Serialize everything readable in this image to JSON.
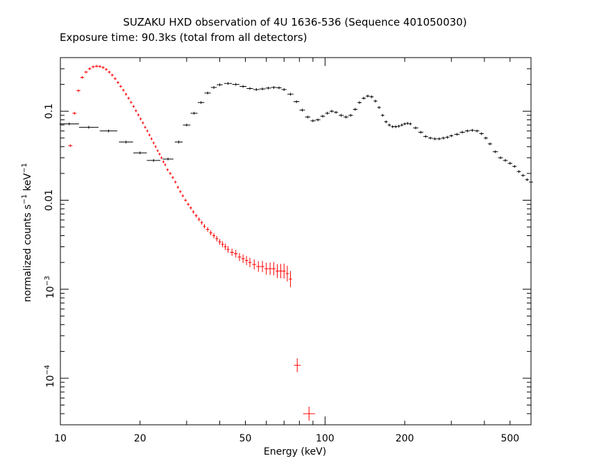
{
  "chart_data": {
    "type": "scatter",
    "title": "SUZAKU HXD observation of 4U 1636-536 (Sequence 401050030)",
    "subtitle": "Exposure time: 90.3ks (total from all detectors)",
    "xlabel": "Energy (keV)",
    "ylabel": {
      "base": "normalized counts s",
      "exp1": "−1",
      "mid": " keV",
      "exp2": "−1"
    },
    "xscale": "log",
    "yscale": "log",
    "xlim": [
      10,
      600
    ],
    "ylim": [
      3e-05,
      0.4
    ],
    "grid": false,
    "x_ticks": [
      {
        "value": 10,
        "label": "10"
      },
      {
        "value": 20,
        "label": "20"
      },
      {
        "value": 50,
        "label": "50"
      },
      {
        "value": 100,
        "label": "100"
      },
      {
        "value": 200,
        "label": "200"
      },
      {
        "value": 500,
        "label": "500"
      }
    ],
    "y_ticks": [
      {
        "value": 0.1,
        "label": "0.1"
      },
      {
        "value": 0.01,
        "label": "0.01"
      },
      {
        "value": 0.001,
        "mant": "10",
        "exp": "−3"
      },
      {
        "value": 0.0001,
        "mant": "10",
        "exp": "−4"
      }
    ],
    "series": [
      {
        "color": "#000000",
        "points": [
          [
            10.8,
            0.072
          ],
          [
            12.8,
            0.066
          ],
          [
            15.2,
            0.06
          ],
          [
            17.7,
            0.045
          ],
          [
            20.0,
            0.034
          ],
          [
            22.5,
            0.028
          ],
          [
            25.5,
            0.029
          ],
          [
            28.0,
            0.045
          ],
          [
            30.0,
            0.07
          ],
          [
            32.0,
            0.095
          ],
          [
            34.0,
            0.125
          ],
          [
            36.0,
            0.16
          ],
          [
            38.0,
            0.185
          ],
          [
            40.0,
            0.198
          ],
          [
            43.0,
            0.205
          ],
          [
            46.0,
            0.2
          ],
          [
            49.0,
            0.19
          ],
          [
            52.0,
            0.18
          ],
          [
            55.0,
            0.175
          ],
          [
            58.0,
            0.178
          ],
          [
            61.0,
            0.182
          ],
          [
            64.0,
            0.185
          ],
          [
            67.0,
            0.183
          ],
          [
            70.0,
            0.175
          ],
          [
            74.0,
            0.155
          ],
          [
            78.0,
            0.128
          ],
          [
            82.0,
            0.103
          ],
          [
            86.0,
            0.086
          ],
          [
            90.0,
            0.078
          ],
          [
            94.0,
            0.08
          ],
          [
            98.0,
            0.088
          ],
          [
            102.0,
            0.095
          ],
          [
            106.0,
            0.1
          ],
          [
            110.0,
            0.097
          ],
          [
            115.0,
            0.09
          ],
          [
            120.0,
            0.086
          ],
          [
            125.0,
            0.09
          ],
          [
            130.0,
            0.105
          ],
          [
            135.0,
            0.125
          ],
          [
            140.0,
            0.14
          ],
          [
            145.0,
            0.148
          ],
          [
            150.0,
            0.145
          ],
          [
            155.0,
            0.13
          ],
          [
            160.0,
            0.11
          ],
          [
            165.0,
            0.09
          ],
          [
            170.0,
            0.076
          ],
          [
            175.0,
            0.07
          ],
          [
            180.0,
            0.067
          ],
          [
            185.0,
            0.067
          ],
          [
            190.0,
            0.068
          ],
          [
            195.0,
            0.07
          ],
          [
            200.0,
            0.072
          ],
          [
            205.0,
            0.073
          ],
          [
            210.0,
            0.072
          ],
          [
            220.0,
            0.065
          ],
          [
            230.0,
            0.058
          ],
          [
            240.0,
            0.052
          ],
          [
            250.0,
            0.05
          ],
          [
            260.0,
            0.049
          ],
          [
            270.0,
            0.049
          ],
          [
            280.0,
            0.05
          ],
          [
            290.0,
            0.051
          ],
          [
            300.0,
            0.053
          ],
          [
            315.0,
            0.055
          ],
          [
            330.0,
            0.058
          ],
          [
            345.0,
            0.06
          ],
          [
            360.0,
            0.061
          ],
          [
            375.0,
            0.06
          ],
          [
            390.0,
            0.056
          ],
          [
            405.0,
            0.05
          ],
          [
            420.0,
            0.043
          ],
          [
            440.0,
            0.035
          ],
          [
            460.0,
            0.03
          ],
          [
            480.0,
            0.028
          ],
          [
            500.0,
            0.026
          ],
          [
            520.0,
            0.024
          ],
          [
            540.0,
            0.021
          ],
          [
            560.0,
            0.019
          ],
          [
            580.0,
            0.017
          ],
          [
            600.0,
            0.016
          ]
        ]
      },
      {
        "color": "#ff0000",
        "points": [
          [
            10.9,
            0.041
          ],
          [
            11.3,
            0.095
          ],
          [
            11.7,
            0.17
          ],
          [
            12.1,
            0.24
          ],
          [
            12.5,
            0.275
          ],
          [
            12.9,
            0.3
          ],
          [
            13.3,
            0.315
          ],
          [
            13.7,
            0.32
          ],
          [
            14.1,
            0.318
          ],
          [
            14.5,
            0.31
          ],
          [
            14.9,
            0.295
          ],
          [
            15.3,
            0.275
          ],
          [
            15.7,
            0.255
          ],
          [
            16.1,
            0.232
          ],
          [
            16.5,
            0.21
          ],
          [
            16.9,
            0.19
          ],
          [
            17.3,
            0.172
          ],
          [
            17.7,
            0.155
          ],
          [
            18.1,
            0.14
          ],
          [
            18.5,
            0.126
          ],
          [
            18.9,
            0.113
          ],
          [
            19.3,
            0.101
          ],
          [
            19.7,
            0.091
          ],
          [
            20.1,
            0.082
          ],
          [
            20.5,
            0.074
          ],
          [
            20.9,
            0.066
          ],
          [
            21.3,
            0.06
          ],
          [
            21.7,
            0.054
          ],
          [
            22.1,
            0.049
          ],
          [
            22.5,
            0.044
          ],
          [
            22.9,
            0.04
          ],
          [
            23.3,
            0.036
          ],
          [
            23.7,
            0.033
          ],
          [
            24.1,
            0.03
          ],
          [
            24.5,
            0.027
          ],
          [
            24.9,
            0.025
          ],
          [
            25.4,
            0.022
          ],
          [
            26.0,
            0.02
          ],
          [
            26.6,
            0.018
          ],
          [
            27.2,
            0.016
          ],
          [
            27.8,
            0.014
          ],
          [
            28.4,
            0.0125
          ],
          [
            29.0,
            0.0112
          ],
          [
            29.7,
            0.01
          ],
          [
            30.4,
            0.009
          ],
          [
            31.1,
            0.0082
          ],
          [
            31.8,
            0.0074
          ],
          [
            32.6,
            0.0067
          ],
          [
            33.4,
            0.0061
          ],
          [
            34.2,
            0.0056
          ],
          [
            35.0,
            0.0051
          ],
          [
            36.0,
            0.0047
          ],
          [
            37.0,
            0.0043
          ],
          [
            38.0,
            0.004
          ],
          [
            39.0,
            0.0037
          ],
          [
            40.0,
            0.0034
          ],
          [
            41.0,
            0.0032
          ],
          [
            42.0,
            0.003
          ],
          [
            43.0,
            0.0028
          ],
          [
            44.5,
            0.0026
          ],
          [
            46.0,
            0.0025
          ],
          [
            47.5,
            0.0023
          ],
          [
            49.0,
            0.0022
          ],
          [
            50.5,
            0.0021
          ],
          [
            52.0,
            0.002
          ],
          [
            54.0,
            0.0019
          ],
          [
            56.0,
            0.0018
          ],
          [
            58.0,
            0.0018
          ],
          [
            60.0,
            0.0017
          ],
          [
            62.0,
            0.0017
          ],
          [
            64.0,
            0.0017
          ],
          [
            66.0,
            0.0016
          ],
          [
            68.0,
            0.0016
          ],
          [
            70.0,
            0.0016
          ],
          [
            72.0,
            0.0015
          ],
          [
            74.0,
            0.0013
          ],
          [
            78.5,
            0.00014
          ],
          [
            87.0,
            4e-05
          ]
        ]
      }
    ]
  }
}
